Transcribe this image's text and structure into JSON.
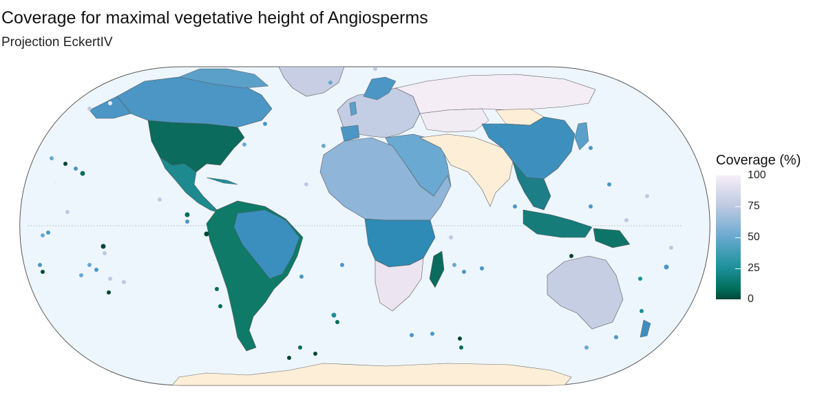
{
  "title": "Coverage for maximal vegetative height of Angiosperms",
  "subtitle": "Projection EckertIV",
  "legend": {
    "title": "Coverage (%)",
    "ticks": [
      "100",
      "75",
      "50",
      "25",
      "0"
    ],
    "colors": [
      "#f6eef7",
      "#bdc9e1",
      "#67a9cf",
      "#1c9099",
      "#016c59",
      "#014636"
    ],
    "no_data_color": "#fdeed8"
  },
  "ocean_color": "#eef6fd"
}
